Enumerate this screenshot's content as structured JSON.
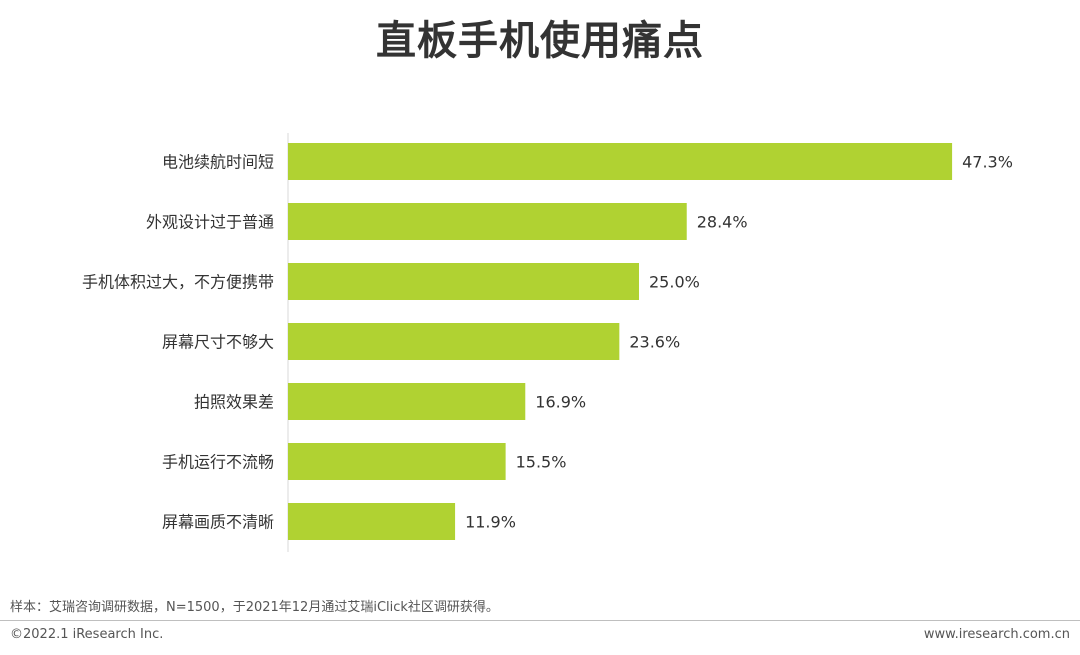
{
  "title": "直板手机使用痛点",
  "chart_data": {
    "type": "bar",
    "orientation": "horizontal",
    "categories": [
      "电池续航时间短",
      "外观设计过于普通",
      "手机体积过大，不方便携带",
      "屏幕尺寸不够大",
      "拍照效果差",
      "手机运行不流畅",
      "屏幕画质不清晰"
    ],
    "values": [
      47.3,
      28.4,
      25.0,
      23.6,
      16.9,
      15.5,
      11.9
    ],
    "value_labels": [
      "47.3%",
      "28.4%",
      "25.0%",
      "23.6%",
      "16.9%",
      "15.5%",
      "11.9%"
    ],
    "unit": "%",
    "xlim": [
      0,
      50
    ],
    "bar_color": "#b0d232",
    "grid": false,
    "legend": "none"
  },
  "footer": {
    "note": "样本：艾瑞咨询调研数据，N=1500，于2021年12月通过艾瑞iClick社区调研获得。",
    "copyright": "©2022.1 iResearch Inc.",
    "website": "www.iresearch.com.cn"
  }
}
